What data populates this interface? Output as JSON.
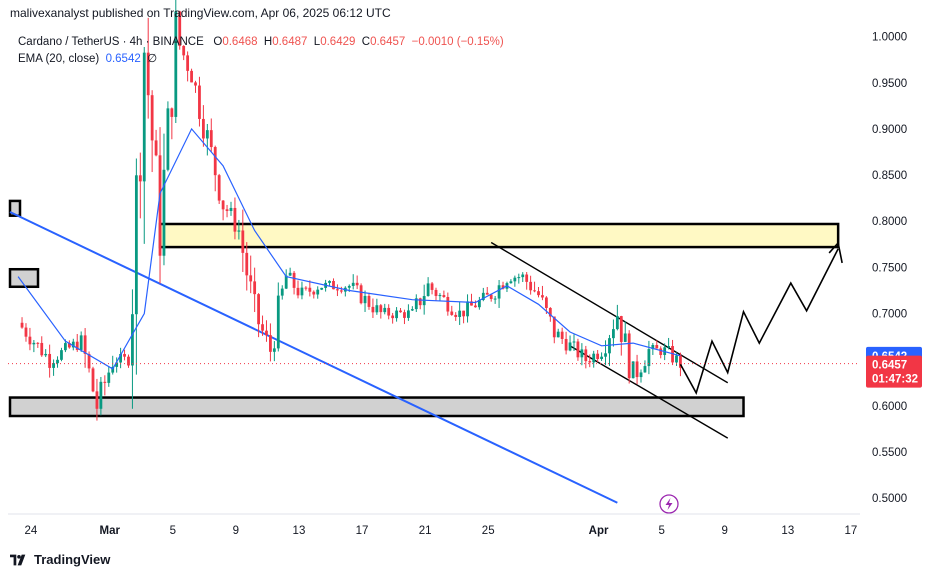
{
  "header": {
    "published_text": "malivexanalyst published on TradingView.com, Apr 06, 2025 06:12 UTC"
  },
  "legend": {
    "symbol": "Cardano / TetherUS · 4h · BINANCE",
    "open_label": "O",
    "open": "0.6468",
    "high_label": "H",
    "high": "0.6487",
    "low_label": "L",
    "low": "0.6429",
    "close_label": "C",
    "close": "0.6457",
    "change": "−0.0010 (−0.15%)",
    "ema_label": "EMA (20, close)",
    "ema_value": "0.6542",
    "ema_extra": "∅"
  },
  "price_badges": {
    "ema": "0.6542",
    "last": "0.6457",
    "countdown": "01:47:32"
  },
  "footer": {
    "brand": "TradingView"
  },
  "colors": {
    "up": "#089981",
    "down": "#f23645",
    "ema": "#2962ff",
    "trendline": "#2962ff",
    "zone_resistance": "#fff9c4",
    "zone_support": "#d1d1d1",
    "price_last": "#f23645",
    "badge_ema": "#2962ff"
  },
  "chart_data": {
    "type": "candlestick",
    "title": "Cardano / TetherUS · 4h · BINANCE",
    "x_ticks": [
      "24",
      "Mar",
      "5",
      "9",
      "13",
      "17",
      "21",
      "25",
      "Apr",
      "5",
      "9",
      "13",
      "17"
    ],
    "y_ticks": [
      "1.0000",
      "0.9500",
      "0.9000",
      "0.8500",
      "0.8000",
      "0.7500",
      "0.7000",
      "0.6500",
      "0.6000",
      "0.5500",
      "0.5000"
    ],
    "ylim": [
      0.485,
      1.005
    ],
    "path_waypoints": [
      {
        "date": "Feb 23",
        "price": 0.69
      },
      {
        "date": "Feb 25",
        "price": 0.65
      },
      {
        "date": "Feb 27",
        "price": 0.67
      },
      {
        "date": "Feb 28",
        "price": 0.6
      },
      {
        "date": "Mar 1",
        "price": 0.65
      },
      {
        "date": "Mar 2",
        "price": 0.65
      },
      {
        "date": "Mar 3",
        "price": 0.99
      },
      {
        "date": "Mar 4",
        "price": 0.79
      },
      {
        "date": "Mar 5",
        "price": 1.0
      },
      {
        "date": "Mar 6",
        "price": 0.96
      },
      {
        "date": "Mar 7",
        "price": 0.89
      },
      {
        "date": "Mar 8",
        "price": 0.82
      },
      {
        "date": "Mar 9",
        "price": 0.79
      },
      {
        "date": "Mar 10",
        "price": 0.7
      },
      {
        "date": "Mar 11",
        "price": 0.66
      },
      {
        "date": "Mar 12",
        "price": 0.74
      },
      {
        "date": "Mar 13",
        "price": 0.72
      },
      {
        "date": "Mar 14",
        "price": 0.73
      },
      {
        "date": "Mar 16",
        "price": 0.73
      },
      {
        "date": "Mar 18",
        "price": 0.7
      },
      {
        "date": "Mar 20",
        "price": 0.7
      },
      {
        "date": "Mar 21",
        "price": 0.73
      },
      {
        "date": "Mar 23",
        "price": 0.7
      },
      {
        "date": "Mar 25",
        "price": 0.72
      },
      {
        "date": "Mar 26",
        "price": 0.74
      },
      {
        "date": "Mar 27",
        "price": 0.74
      },
      {
        "date": "Mar 28",
        "price": 0.72
      },
      {
        "date": "Mar 29",
        "price": 0.68
      },
      {
        "date": "Mar 31",
        "price": 0.65
      },
      {
        "date": "Apr 1",
        "price": 0.66
      },
      {
        "date": "Apr 2",
        "price": 0.7
      },
      {
        "date": "Apr 3",
        "price": 0.63
      },
      {
        "date": "Apr 4",
        "price": 0.66
      },
      {
        "date": "Apr 5",
        "price": 0.66
      },
      {
        "date": "Apr 6",
        "price": 0.6457
      }
    ],
    "ema_series": {
      "name": "EMA (20, close)",
      "points": [
        {
          "date": "Feb 23",
          "price": 0.74
        },
        {
          "date": "Feb 26",
          "price": 0.67
        },
        {
          "date": "Mar 1",
          "price": 0.64
        },
        {
          "date": "Mar 3",
          "price": 0.7
        },
        {
          "date": "Mar 4",
          "price": 0.83
        },
        {
          "date": "Mar 6",
          "price": 0.9
        },
        {
          "date": "Mar 8",
          "price": 0.86
        },
        {
          "date": "Mar 10",
          "price": 0.79
        },
        {
          "date": "Mar 12",
          "price": 0.74
        },
        {
          "date": "Mar 16",
          "price": 0.725
        },
        {
          "date": "Mar 20",
          "price": 0.715
        },
        {
          "date": "Mar 24",
          "price": 0.712
        },
        {
          "date": "Mar 26",
          "price": 0.73
        },
        {
          "date": "Mar 28",
          "price": 0.71
        },
        {
          "date": "Mar 30",
          "price": 0.68
        },
        {
          "date": "Apr 1",
          "price": 0.665
        },
        {
          "date": "Apr 3",
          "price": 0.668
        },
        {
          "date": "Apr 6",
          "price": 0.6542
        }
      ]
    },
    "zones": [
      {
        "name": "resistance",
        "date_start": "Mar 4",
        "date_end": "Apr 16",
        "top": 0.797,
        "bottom": 0.772
      },
      {
        "name": "support",
        "date_start": "Feb 23",
        "date_end": "Apr 10",
        "top": 0.609,
        "bottom": 0.589
      },
      {
        "name": "small-top",
        "date_start": "Feb 23",
        "date_end": "Feb 23",
        "top": 0.822,
        "bottom": 0.806
      },
      {
        "name": "small-mid",
        "date_start": "Feb 23",
        "date_end": "Feb 24",
        "top": 0.748,
        "bottom": 0.729
      }
    ],
    "trendlines": [
      {
        "name": "blue-downtrend",
        "from": {
          "date": "Feb 23",
          "price": 0.81
        },
        "to": {
          "date": "Apr 2",
          "price": 0.495
        }
      },
      {
        "name": "channel-top",
        "from": {
          "date": "Mar 25",
          "price": 0.777
        },
        "to": {
          "date": "Apr 9",
          "price": 0.625
        }
      },
      {
        "name": "channel-bottom",
        "from": {
          "date": "Mar 30",
          "price": 0.665
        },
        "to": {
          "date": "Apr 9",
          "price": 0.565
        }
      }
    ],
    "projection": [
      {
        "date": "Apr 6",
        "price": 0.645
      },
      {
        "date": "Apr 7",
        "price": 0.614
      },
      {
        "date": "Apr 8",
        "price": 0.67
      },
      {
        "date": "Apr 9",
        "price": 0.636
      },
      {
        "date": "Apr 10",
        "price": 0.702
      },
      {
        "date": "Apr 11",
        "price": 0.668
      },
      {
        "date": "Apr 13",
        "price": 0.733
      },
      {
        "date": "Apr 14",
        "price": 0.703
      },
      {
        "date": "Apr 16",
        "price": 0.77
      }
    ],
    "last_price": 0.6457,
    "ema_last": 0.6542
  }
}
